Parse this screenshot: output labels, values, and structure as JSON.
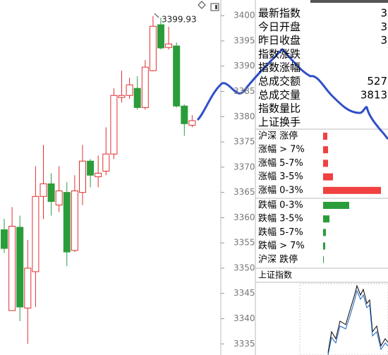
{
  "chart_data": {
    "type": "candlestick",
    "annotation": "3399.93",
    "ylim": [
      3332.8,
      3403.1
    ],
    "yticks": [
      3335,
      3340,
      3345,
      3350,
      3355,
      3360,
      3365,
      3370,
      3375,
      3380,
      3385,
      3390,
      3395,
      3400
    ],
    "open": [
      3357.6,
      3341.6,
      3358.1,
      3342.1,
      3349.3,
      3364.2,
      3366.7,
      3362.5,
      3365.0,
      3353.5,
      3365.0,
      3371.2,
      3368.1,
      3369.2,
      3372.6,
      3383.8,
      3384.2,
      3385.6,
      3381.8,
      3389.1,
      3398.2,
      3393.7,
      3394.0,
      3382.1,
      3378.3
    ],
    "close": [
      3353.9,
      3358.3,
      3342.3,
      3350.0,
      3364.2,
      3366.7,
      3363.2,
      3365.3,
      3353.2,
      3365.3,
      3371.2,
      3368.4,
      3368.8,
      3372.6,
      3384.2,
      3384.2,
      3386.3,
      3381.8,
      3389.8,
      3397.9,
      3393.6,
      3394.4,
      3382.1,
      3378.6,
      3379.2
    ],
    "high": [
      3359.8,
      3362.1,
      3360.4,
      3355.6,
      3370.2,
      3374.4,
      3368.8,
      3370.2,
      3367.0,
      3368.4,
      3374.4,
      3371.6,
      3372.3,
      3377.9,
      3385.6,
      3389.1,
      3387.7,
      3388.0,
      3391.2,
      3399.93,
      3399.6,
      3397.8,
      3394.7,
      3382.4,
      3380.3
    ],
    "low": [
      3353.0,
      3341.6,
      3339.5,
      3335.0,
      3342.3,
      3359.7,
      3360.4,
      3361.1,
      3350.4,
      3353.2,
      3362.5,
      3366.0,
      3366.0,
      3368.4,
      3371.6,
      3382.8,
      3383.5,
      3381.4,
      3381.4,
      3389.0,
      3393.3,
      3393.3,
      3381.8,
      3376.2,
      3377.9
    ],
    "up_color": "#e03030",
    "down_color": "#2a9d3a"
  },
  "panel": {
    "stats": [
      {
        "label": "最新指数",
        "value": "3",
        "color": "#e03030"
      },
      {
        "label": "今日开盘",
        "value": "3",
        "color": "#2a9d3a"
      },
      {
        "label": "昨日收盘",
        "value": "3",
        "color": "#000000"
      },
      {
        "label": "指数涨跌"
      },
      {
        "label": "指数涨幅"
      },
      {
        "label": "总成交额",
        "value": "527",
        "color": "#000000"
      },
      {
        "label": "总成交量",
        "value": "3813",
        "color": "#000000"
      },
      {
        "label": "指数量比"
      },
      {
        "label": "上证换手"
      }
    ],
    "breadth": [
      {
        "label": "沪深 涨停",
        "value": 6,
        "color": "#f04040"
      },
      {
        "label": "涨幅 > 7%",
        "value": 7,
        "color": "#f04040"
      },
      {
        "label": "涨幅 5-7%",
        "value": 7,
        "color": "#f04040"
      },
      {
        "label": "涨幅 3-5%",
        "value": 14,
        "color": "#f04040"
      },
      {
        "label": "涨幅 0-3%",
        "value": 82,
        "color": "#f04040"
      },
      {
        "label": "跌幅 0-3%",
        "value": 37,
        "color": "#2a9d3a"
      },
      {
        "label": "跌幅 3-5%",
        "value": 9,
        "color": "#2a9d3a"
      },
      {
        "label": "跌幅 5-7%",
        "value": 4,
        "color": "#2a9d3a"
      },
      {
        "label": "跌幅 > 7%",
        "value": 3,
        "color": "#2a9d3a"
      },
      {
        "label": "沪深 跌停",
        "value": 1,
        "color": "#2a9d3a"
      }
    ],
    "mini_title": "上证指数"
  }
}
